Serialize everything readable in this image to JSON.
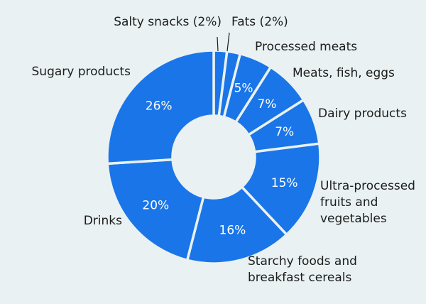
{
  "chart_data": {
    "type": "pie",
    "variant": "donut",
    "title": "",
    "slice_color": "#1a75e8",
    "separator_color": "#e9f1f3",
    "background": "#e9f1f3",
    "slices": [
      {
        "name": "Salty snacks",
        "value": 2,
        "label": "Salty snacks (2%)",
        "value_label": ""
      },
      {
        "name": "Fats",
        "value": 2,
        "label": "Fats (2%)",
        "value_label": ""
      },
      {
        "name": "Processed meats",
        "value": 5,
        "label": "Processed meats",
        "value_label": "5%"
      },
      {
        "name": "Meats, fish, eggs",
        "value": 7,
        "label": "Meats, fish, eggs",
        "value_label": "7%"
      },
      {
        "name": "Dairy products",
        "value": 7,
        "label": "Dairy products",
        "value_label": "7%"
      },
      {
        "name": "Ultra-processed fruits and vegetables",
        "value": 15,
        "label": "Ultra-processed\nfruits and\nvegetables",
        "value_label": "15%"
      },
      {
        "name": "Starchy foods and breakfast cereals",
        "value": 16,
        "label": "Starchy foods and\nbreakfast cereals",
        "value_label": "16%"
      },
      {
        "name": "Drinks",
        "value": 20,
        "label": "Drinks",
        "value_label": "20%"
      },
      {
        "name": "Sugary products",
        "value": 26,
        "label": "Sugary products",
        "value_label": "26%"
      }
    ]
  }
}
